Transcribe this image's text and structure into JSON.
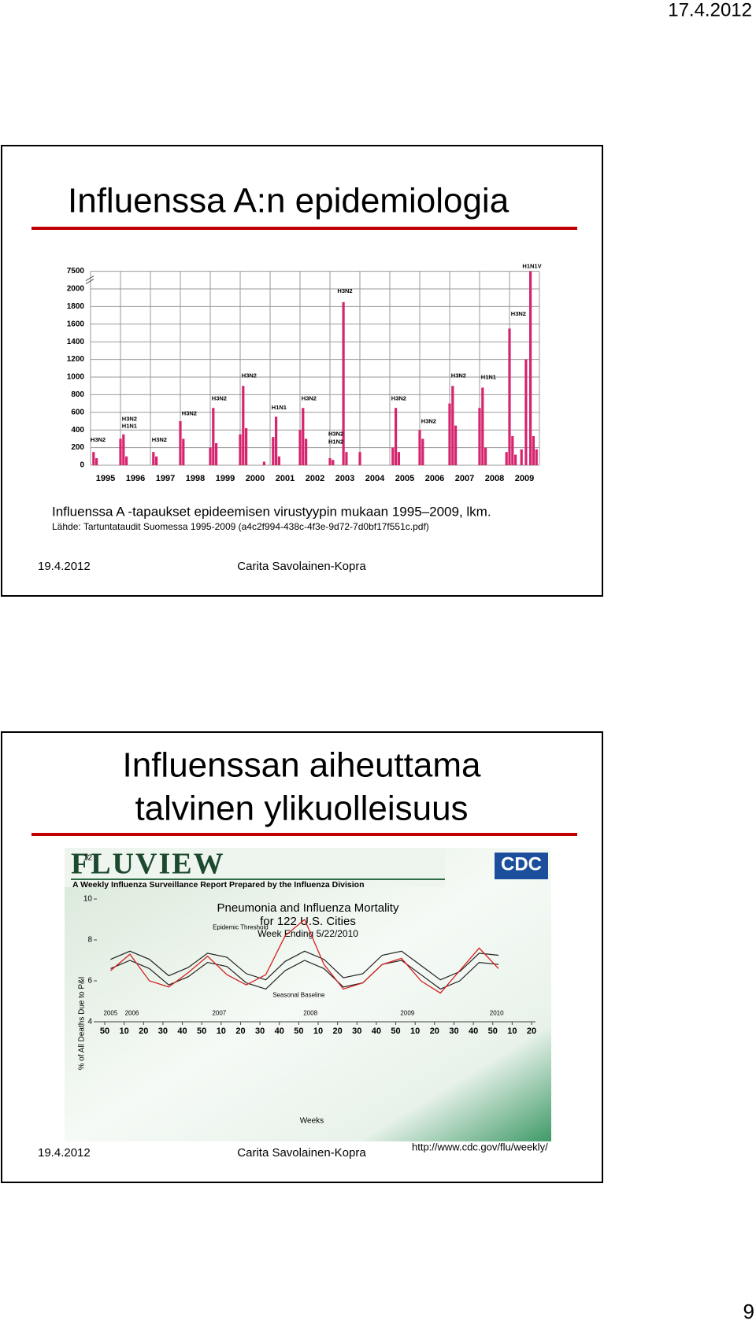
{
  "header": {
    "date": "17.4.2012"
  },
  "page_number": "9",
  "slides": [
    {
      "title": "Influenssa A:n epidemiologia",
      "chart": {
        "type": "bar",
        "color": "#d6246e",
        "xlim": [
          1995,
          2010
        ],
        "ylim": [
          0,
          7500
        ],
        "yticks": [
          0,
          200,
          400,
          600,
          800,
          1000,
          1200,
          1400,
          1600,
          1800,
          2000,
          7500
        ],
        "grid": true,
        "categories": [
          "1995",
          "1996",
          "1997",
          "1998",
          "1999",
          "2000",
          "2001",
          "2002",
          "2003",
          "2004",
          "2005",
          "2006",
          "2007",
          "2008",
          "2009"
        ],
        "x": [
          1995.1,
          1995.2,
          1996.0,
          1996.1,
          1996.2,
          1997.1,
          1997.2,
          1998.0,
          1998.1,
          1999.0,
          1999.1,
          1999.2,
          2000.0,
          2000.1,
          2000.2,
          2000.8,
          2001.1,
          2001.2,
          2001.3,
          2002.0,
          2002.1,
          2002.2,
          2003.0,
          2003.1,
          2003.45,
          2003.55,
          2004.0,
          2005.1,
          2005.2,
          2005.3,
          2006.0,
          2006.1,
          2007.0,
          2007.1,
          2007.2,
          2008.0,
          2008.1,
          2008.2,
          2008.9,
          2009.0,
          2009.1,
          2009.2,
          2009.4,
          2009.55,
          2009.7,
          2009.8,
          2009.9
        ],
        "values": [
          150,
          80,
          300,
          350,
          100,
          150,
          100,
          500,
          300,
          200,
          650,
          250,
          350,
          900,
          420,
          40,
          320,
          550,
          100,
          400,
          650,
          300,
          80,
          60,
          1850,
          150,
          150,
          200,
          650,
          150,
          400,
          300,
          700,
          900,
          450,
          650,
          880,
          200,
          150,
          1550,
          330,
          120,
          180,
          1200,
          7500,
          330,
          180
        ],
        "annotations": [
          {
            "text": "H3N2",
            "x": 1995.25,
            "y": 230
          },
          {
            "text": "H3N2",
            "x": 1996.3,
            "y": 470
          },
          {
            "text": "H1N1",
            "x": 1996.3,
            "y": 390
          },
          {
            "text": "H3N2",
            "x": 1997.3,
            "y": 230
          },
          {
            "text": "H3N2",
            "x": 1998.3,
            "y": 530
          },
          {
            "text": "H3N2",
            "x": 1999.3,
            "y": 700
          },
          {
            "text": "H3N2",
            "x": 2000.3,
            "y": 960
          },
          {
            "text": "H1N1",
            "x": 2001.3,
            "y": 600
          },
          {
            "text": "H3N2",
            "x": 2002.3,
            "y": 700
          },
          {
            "text": "H3N2",
            "x": 2003.2,
            "y": 300
          },
          {
            "text": "H1N2",
            "x": 2003.2,
            "y": 210
          },
          {
            "text": "H3N2",
            "x": 2003.5,
            "y": 1920
          },
          {
            "text": "H3N2",
            "x": 2005.3,
            "y": 700
          },
          {
            "text": "H3N2",
            "x": 2006.3,
            "y": 440
          },
          {
            "text": "H3N2",
            "x": 2007.3,
            "y": 960
          },
          {
            "text": "H1N1",
            "x": 2008.3,
            "y": 940
          },
          {
            "text": "H3N2",
            "x": 2009.3,
            "y": 1660
          },
          {
            "text": "H1N1V",
            "x": 2009.75,
            "y": 7500
          }
        ]
      },
      "caption": "Influenssa A -tapaukset epideemisen virustyypin mukaan 1995–2009, lkm.",
      "source": "Lähde: Tartuntataudit Suomessa 1995-2009 (a4c2f994-438c-4f3e-9d72-7d0bf17f551c.pdf)",
      "footer": {
        "date": "19.4.2012",
        "author": "Carita Savolainen-Kopra"
      }
    },
    {
      "title_lines": [
        "Influenssan aiheuttama",
        "talvinen ylikuolleisuus"
      ],
      "image": {
        "banner": "FLUVIEW",
        "subtitle": "A Weekly Influenza Surveillance Report Prepared by the Influenza Division",
        "logo": "CDC",
        "chart": {
          "type": "line",
          "title_lines": [
            "Pneumonia and Influenza Mortality",
            "for 122 U.S. Cities",
            "Week Ending  5/22/2010"
          ],
          "ylabel": "% of All Deaths Due to P&I",
          "xlabel": "Weeks",
          "ylim": [
            4,
            12
          ],
          "yticks": [
            4,
            6,
            8,
            10,
            12
          ],
          "xlim": [
            0,
            22
          ],
          "xticks": [
            {
              "value": 0,
              "label": "50"
            },
            {
              "value": 1,
              "label": "10"
            },
            {
              "value": 2,
              "label": "20"
            },
            {
              "value": 3,
              "label": "30"
            },
            {
              "value": 4,
              "label": "40"
            },
            {
              "value": 5,
              "label": "50"
            },
            {
              "value": 6,
              "label": "10"
            },
            {
              "value": 7,
              "label": "20"
            },
            {
              "value": 8,
              "label": "30"
            },
            {
              "value": 9,
              "label": "40"
            },
            {
              "value": 10,
              "label": "50"
            },
            {
              "value": 11,
              "label": "10"
            },
            {
              "value": 12,
              "label": "20"
            },
            {
              "value": 13,
              "label": "30"
            },
            {
              "value": 14,
              "label": "40"
            },
            {
              "value": 15,
              "label": "50"
            },
            {
              "value": 16,
              "label": "10"
            },
            {
              "value": 17,
              "label": "20"
            },
            {
              "value": 18,
              "label": "30"
            },
            {
              "value": 19,
              "label": "40"
            },
            {
              "value": 20,
              "label": "50"
            },
            {
              "value": 21,
              "label": "10"
            },
            {
              "value": 22,
              "label": "20"
            }
          ],
          "x": [
            0.3,
            1.3,
            2.3,
            3.3,
            4.3,
            5.3,
            6.3,
            7.3,
            8.3,
            9.3,
            10.3,
            11.3,
            12.3,
            13.3,
            14.3,
            15.3,
            16.3,
            17.3,
            18.3,
            19.3,
            20.3
          ],
          "series": [
            {
              "color": "#222222",
              "values": [
                6.6,
                7.0,
                6.6,
                5.8,
                6.2,
                6.9,
                6.7,
                5.9,
                5.6,
                6.5,
                7.0,
                6.6,
                5.7,
                5.9,
                6.8,
                7.0,
                6.3,
                5.6,
                6.0,
                6.9,
                6.8
              ]
            },
            {
              "color": "#222222",
              "values": [
                7.05,
                7.45,
                7.05,
                6.25,
                6.65,
                7.35,
                7.15,
                6.35,
                6.05,
                6.95,
                7.45,
                7.05,
                6.15,
                6.35,
                7.25,
                7.45,
                6.75,
                6.05,
                6.45,
                7.35,
                7.25
              ]
            },
            {
              "color": "#d42020",
              "values": [
                6.5,
                7.3,
                6.0,
                5.7,
                6.4,
                7.2,
                6.3,
                5.8,
                6.3,
                8.2,
                9.0,
                6.8,
                5.6,
                5.9,
                6.8,
                7.1,
                6.0,
                5.4,
                6.5,
                7.6,
                6.6
              ]
            }
          ],
          "annotations": [
            {
              "text": "Epidemic Threshold",
              "x": 7.0,
              "y": 8.6
            },
            {
              "text": "Seasonal Baseline",
              "x": 10.0,
              "y": 5.3
            },
            {
              "text": "2005",
              "x": 0.3,
              "y": 4.4
            },
            {
              "text": "2006",
              "x": 1.4,
              "y": 4.4
            },
            {
              "text": "2007",
              "x": 5.9,
              "y": 4.4
            },
            {
              "text": "2008",
              "x": 10.6,
              "y": 4.4
            },
            {
              "text": "2009",
              "x": 15.6,
              "y": 4.4
            },
            {
              "text": "2010",
              "x": 20.2,
              "y": 4.4
            }
          ]
        }
      },
      "url": "http://www.cdc.gov/flu/weekly/",
      "footer": {
        "date": "19.4.2012",
        "author": "Carita Savolainen-Kopra"
      }
    }
  ]
}
